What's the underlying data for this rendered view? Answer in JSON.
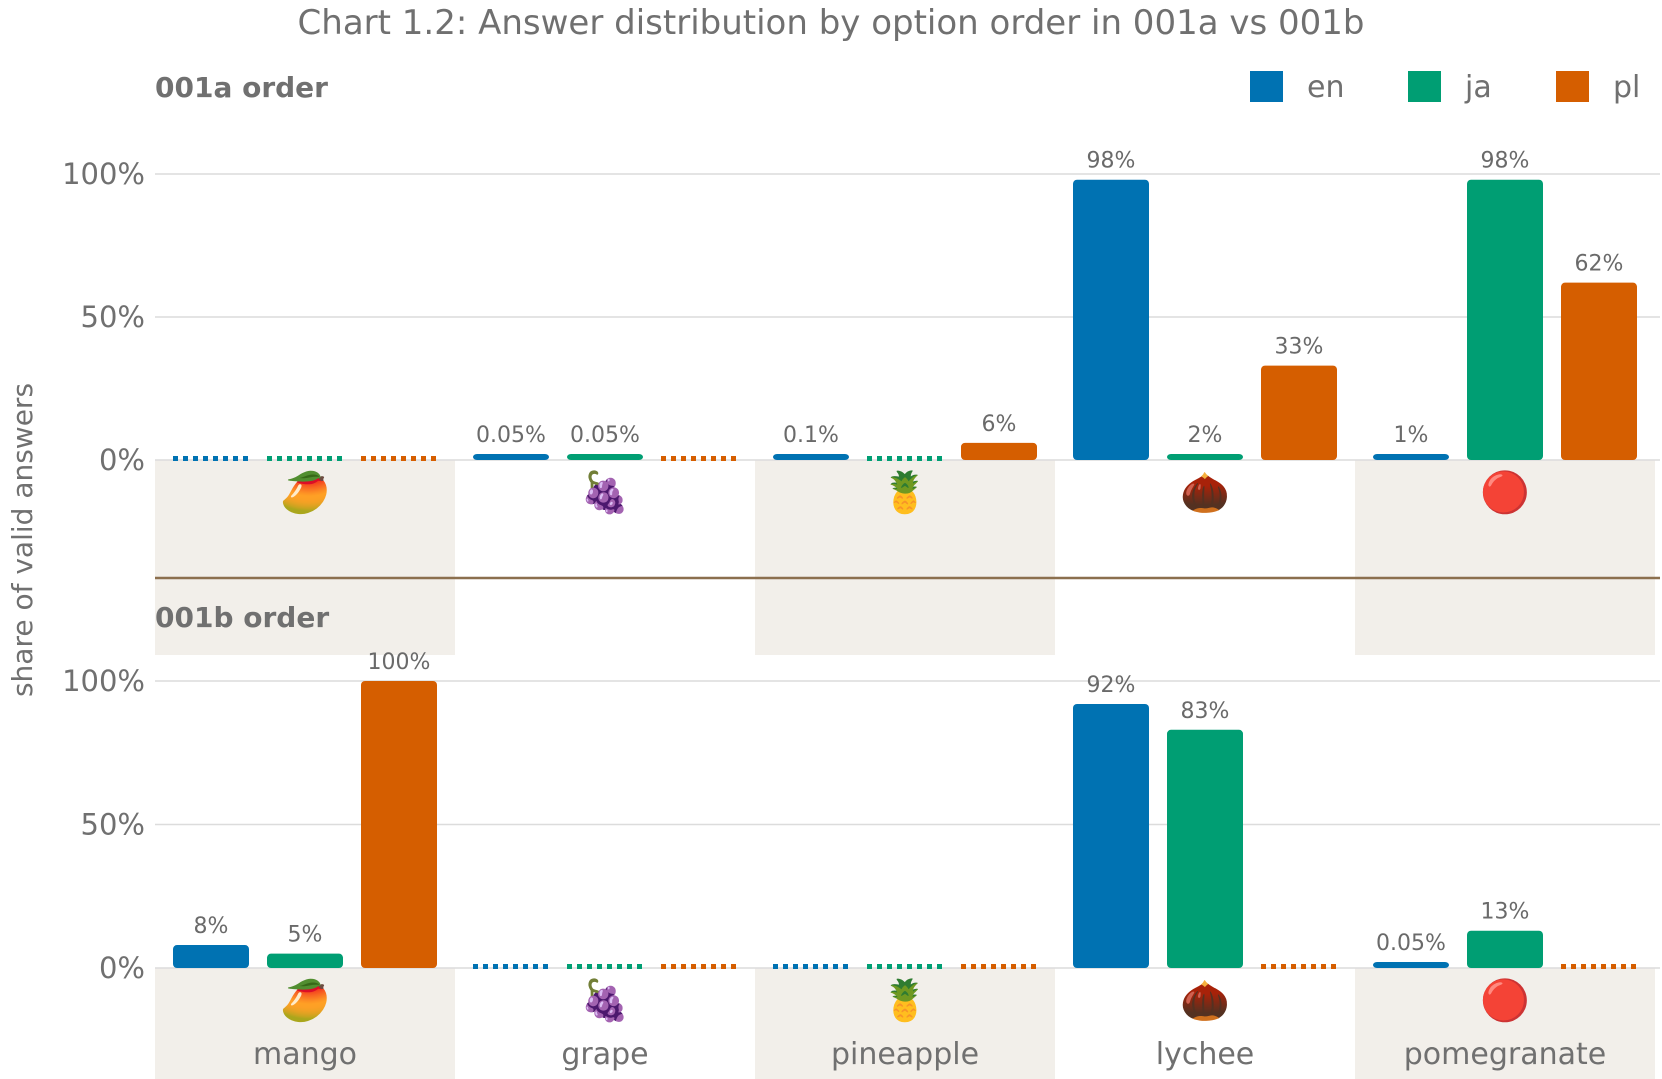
{
  "chart_data": {
    "type": "bar",
    "title": "Chart 1.2: Answer distribution by option order in 001a vs 001b",
    "ylabel": "share of valid answers",
    "ylim": [
      0,
      100
    ],
    "yticks": [
      "0%",
      "50%",
      "100%"
    ],
    "grid": true,
    "legend_position": "top-right",
    "categories": [
      "mango",
      "grape",
      "pineapple",
      "lychee",
      "pomegranate"
    ],
    "category_icons": [
      "🥭",
      "🍇",
      "🍍",
      "🌰",
      "🔴"
    ],
    "series_colors": {
      "en": "#0072b2",
      "ja": "#009e73",
      "pl": "#d55e00"
    },
    "legend": [
      "en",
      "ja",
      "pl"
    ],
    "panels": [
      {
        "name": "001a order",
        "series": [
          {
            "name": "en",
            "values": [
              null,
              0.05,
              0.1,
              98,
              1
            ],
            "labels": [
              "",
              "0.05%",
              "0.1%",
              "98%",
              "1%"
            ]
          },
          {
            "name": "ja",
            "values": [
              null,
              0.05,
              null,
              2,
              98
            ],
            "labels": [
              "",
              "0.05%",
              "",
              "2%",
              "98%"
            ]
          },
          {
            "name": "pl",
            "values": [
              null,
              null,
              6,
              33,
              62
            ],
            "labels": [
              "",
              "",
              "6%",
              "33%",
              "62%"
            ]
          }
        ]
      },
      {
        "name": "001b order",
        "series": [
          {
            "name": "en",
            "values": [
              8,
              null,
              null,
              92,
              0.05
            ],
            "labels": [
              "8%",
              "",
              "",
              "92%",
              "0.05%"
            ]
          },
          {
            "name": "ja",
            "values": [
              5,
              null,
              null,
              83,
              13
            ],
            "labels": [
              "5%",
              "",
              "",
              "83%",
              "13%"
            ]
          },
          {
            "name": "pl",
            "values": [
              100,
              null,
              null,
              null,
              null
            ],
            "labels": [
              "100%",
              "",
              "",
              "",
              ""
            ]
          }
        ]
      }
    ]
  }
}
